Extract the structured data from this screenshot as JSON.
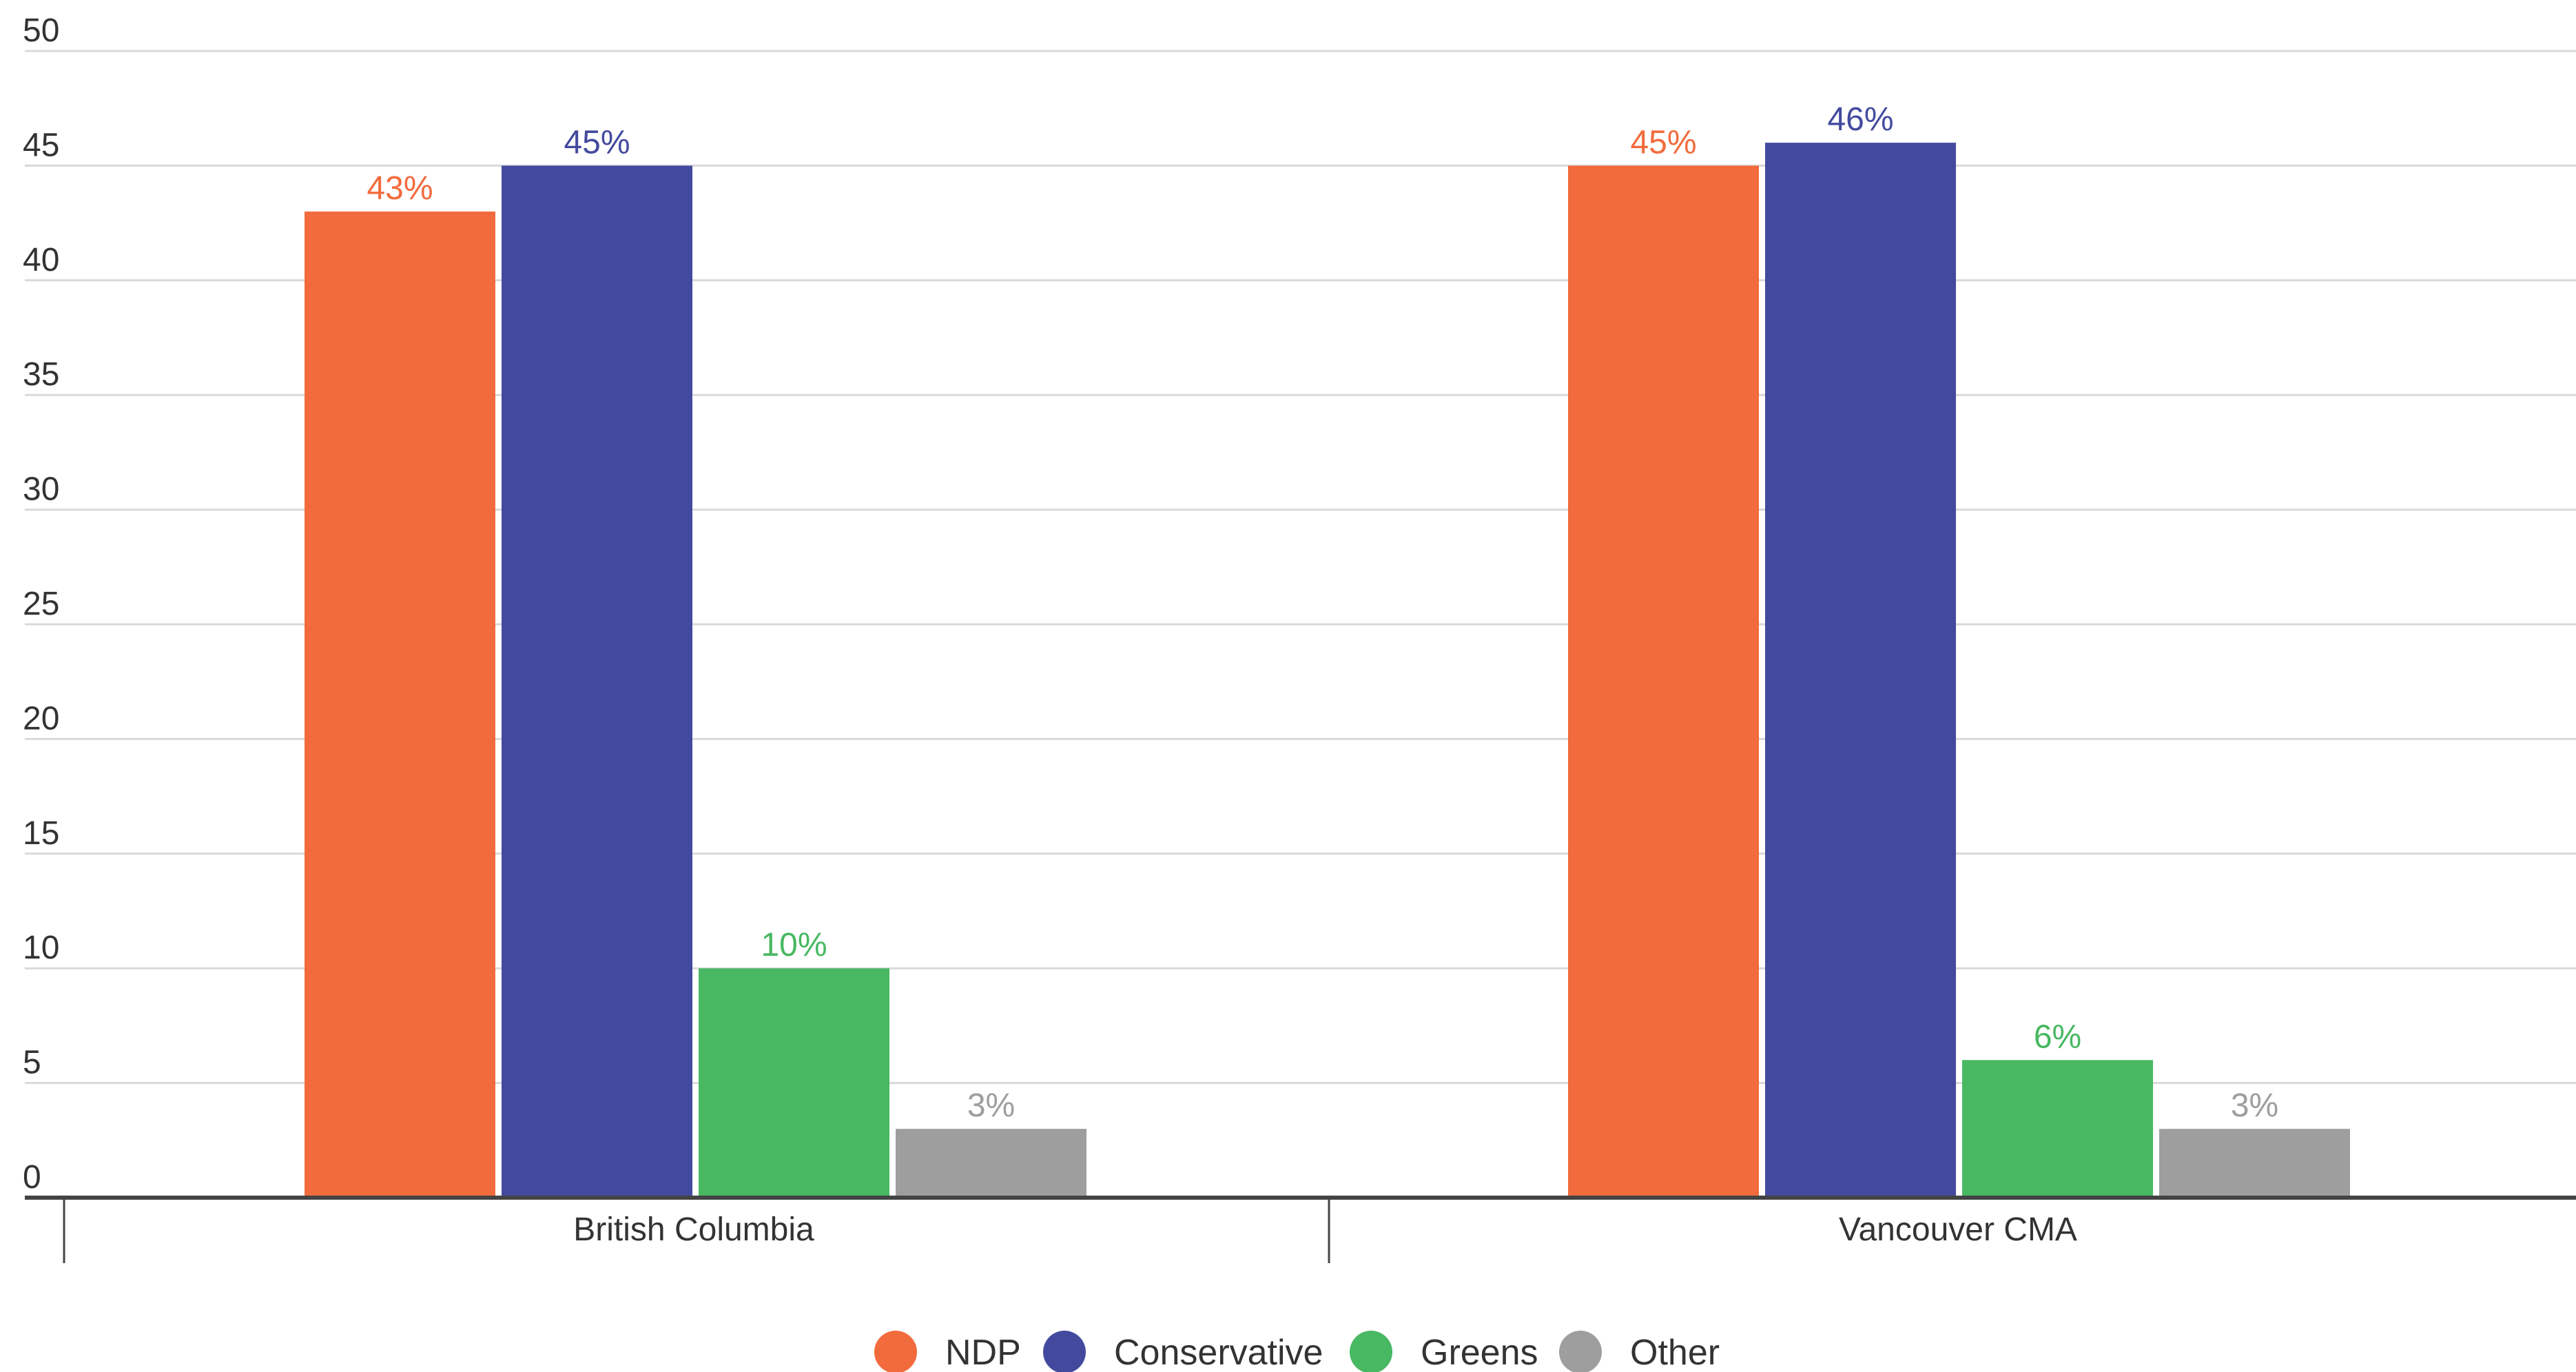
{
  "chart_data": {
    "type": "bar",
    "title": "",
    "xlabel": "",
    "ylabel": "",
    "ylim": [
      0,
      50
    ],
    "yticks": [
      0,
      5,
      10,
      15,
      20,
      25,
      30,
      35,
      40,
      45,
      50
    ],
    "grid": true,
    "legend_position": "bottom-center",
    "categories": [
      "British Columbia",
      "Vancouver CMA"
    ],
    "series": [
      {
        "name": "NDP",
        "color": "#F26B3C",
        "values": [
          43,
          45
        ],
        "labels": [
          "43%",
          "45%"
        ]
      },
      {
        "name": "Conservative",
        "color": "#434A9E",
        "values": [
          45,
          46
        ],
        "labels": [
          "45%",
          "46%"
        ]
      },
      {
        "name": "Greens",
        "color": "#48B862",
        "values": [
          10,
          6
        ],
        "labels": [
          "10%",
          "6%"
        ]
      },
      {
        "name": "Other",
        "color": "#9E9E9E",
        "values": [
          3,
          3
        ],
        "labels": [
          "3%",
          "3%"
        ]
      }
    ]
  }
}
